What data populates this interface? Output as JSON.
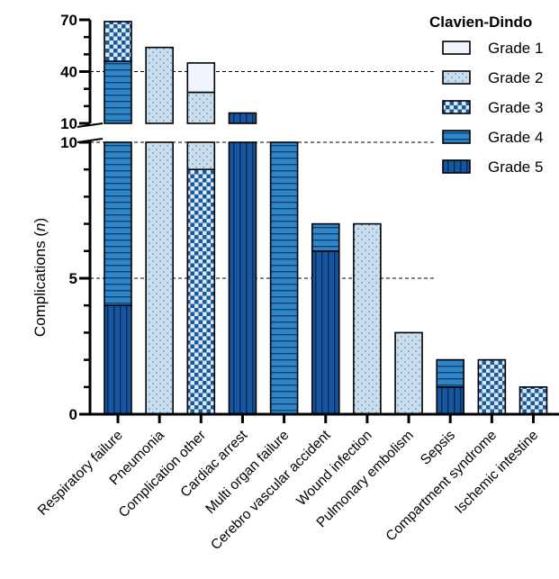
{
  "chart_data": {
    "type": "bar",
    "stacked": true,
    "broken_y_axis": true,
    "ylabel_text": "Complications",
    "ylabel_unit": "n",
    "lower_axis": {
      "ylim": [
        0,
        10
      ],
      "ticks": [
        0,
        5,
        10
      ]
    },
    "upper_axis": {
      "ylim": [
        10,
        70
      ],
      "ticks": [
        10,
        40,
        70
      ]
    },
    "dashed_gridlines": [
      5,
      10,
      40
    ],
    "legend": {
      "title": "Clavien-Dindo",
      "placement": "top-right"
    },
    "categories": [
      "Respiratory failure",
      "Pneumonia",
      "Complication other",
      "Cardiac arrest",
      "Multi organ failure",
      "Cerebro vascular accident",
      "Wound infection",
      "Pulmonary embolism",
      "Sepsis",
      "Compartment syndrome",
      "Ischemic intestine"
    ],
    "series": [
      {
        "name": "Grade 1",
        "values": [
          0,
          0,
          17,
          0,
          0,
          0,
          0,
          0,
          0,
          0,
          0
        ]
      },
      {
        "name": "Grade 2",
        "values": [
          0,
          54,
          19,
          0,
          0,
          0,
          7,
          3,
          0,
          0,
          0
        ]
      },
      {
        "name": "Grade 3",
        "values": [
          23,
          0,
          9,
          0,
          0,
          0,
          0,
          0,
          0,
          2,
          1
        ]
      },
      {
        "name": "Grade 4",
        "values": [
          42,
          0,
          0,
          0,
          10,
          1,
          0,
          0,
          1,
          0,
          0
        ]
      },
      {
        "name": "Grade 5",
        "values": [
          4,
          0,
          0,
          16,
          0,
          6,
          0,
          0,
          1,
          0,
          0
        ]
      }
    ]
  },
  "colors": {
    "grade1": "#f0f4fc",
    "grade2": "#c8deef",
    "grade3": "#2e86c6",
    "grade4": "#2f86c6",
    "grade5": "#1456a0",
    "axis": "#000000",
    "grid": "#000000"
  },
  "legend_display": [
    "Grade 1",
    "Grade 2 ",
    "Grade 3 ",
    "Grade 4 ",
    "Grade 5 "
  ]
}
